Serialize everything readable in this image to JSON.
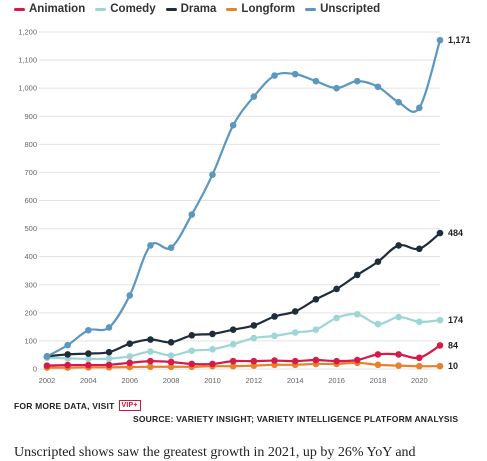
{
  "legend": [
    {
      "label": "Animation",
      "color": "#d6194a"
    },
    {
      "label": "Comedy",
      "color": "#9dd6d4"
    },
    {
      "label": "Drama",
      "color": "#1f2d3a"
    },
    {
      "label": "Longform",
      "color": "#e8812a"
    },
    {
      "label": "Unscripted",
      "color": "#5b97bf"
    }
  ],
  "footer": {
    "more_data": "FOR MORE DATA, VISIT",
    "vip_badge": "VIP+",
    "source": "SOURCE: VARIETY INSIGHT; VARIETY INTELLIGENCE PLATFORM ANALYSIS"
  },
  "body_text": "Unscripted shows saw the greatest growth in 2021, up by 26% YoY and",
  "chart_data": {
    "type": "line",
    "title": "",
    "xlabel": "",
    "ylabel": "",
    "x": [
      2002,
      2003,
      2004,
      2005,
      2006,
      2007,
      2008,
      2009,
      2010,
      2011,
      2012,
      2013,
      2014,
      2015,
      2016,
      2017,
      2018,
      2019,
      2020,
      2021
    ],
    "xticks": [
      "2002",
      "2004",
      "2006",
      "2008",
      "2010",
      "2012",
      "2014",
      "2016",
      "2018",
      "2020"
    ],
    "yticks": [
      "0",
      "100",
      "200",
      "300",
      "400",
      "500",
      "600",
      "700",
      "800",
      "900",
      "1,000",
      "1,100",
      "1,200"
    ],
    "ylim": [
      0,
      1200
    ],
    "xlim": [
      2002,
      2021
    ],
    "grid": true,
    "legend_position": "top",
    "series": [
      {
        "name": "Unscripted",
        "color": "#5b97bf",
        "values": [
          45,
          85,
          138,
          148,
          262,
          440,
          432,
          550,
          692,
          868,
          970,
          1045,
          1050,
          1025,
          1000,
          1025,
          1005,
          950,
          930,
          1171
        ],
        "end_label": "1,171"
      },
      {
        "name": "Drama",
        "color": "#1f2d3a",
        "values": [
          45,
          52,
          55,
          60,
          90,
          105,
          95,
          120,
          125,
          140,
          155,
          187,
          205,
          248,
          285,
          335,
          382,
          440,
          428,
          484
        ],
        "end_label": "484"
      },
      {
        "name": "Comedy",
        "color": "#9dd6d4",
        "values": [
          40,
          38,
          36,
          37,
          45,
          62,
          48,
          65,
          70,
          88,
          110,
          118,
          130,
          140,
          182,
          195,
          160,
          185,
          168,
          174
        ],
        "end_label": "174"
      },
      {
        "name": "Animation",
        "color": "#d6194a",
        "values": [
          12,
          14,
          14,
          15,
          22,
          28,
          25,
          18,
          18,
          28,
          28,
          30,
          28,
          32,
          28,
          32,
          52,
          52,
          40,
          84
        ],
        "end_label": "84"
      },
      {
        "name": "Longform",
        "color": "#e8812a",
        "values": [
          5,
          5,
          6,
          6,
          7,
          8,
          8,
          8,
          10,
          10,
          12,
          15,
          15,
          18,
          18,
          22,
          15,
          12,
          10,
          10
        ],
        "end_label": "10"
      }
    ]
  }
}
